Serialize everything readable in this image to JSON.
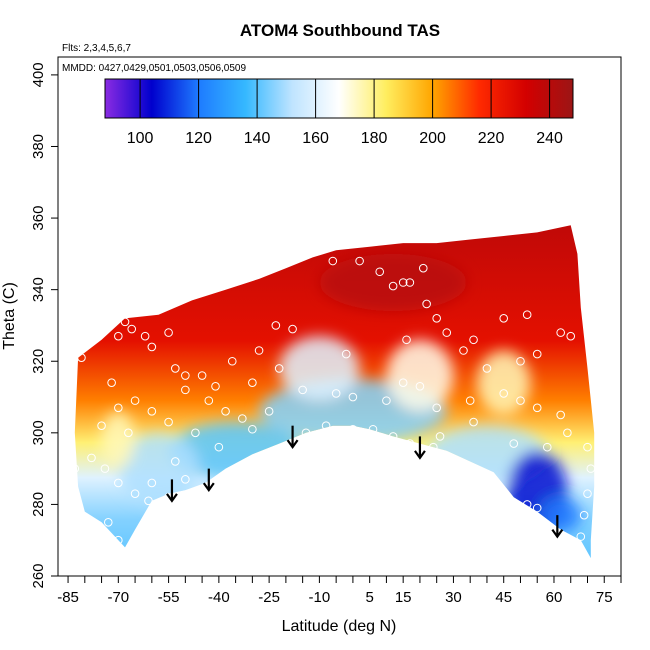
{
  "chart_data": {
    "type": "heatmap",
    "title": "ATOM4 Southbound TAS",
    "annotations": {
      "flights": "Flts: 2,3,4,5,6,7",
      "dates": "MMDD: 0427,0429,0501,0503,0506,0509"
    },
    "xlabel": "Latitude (deg N)",
    "ylabel": "Theta (C)",
    "xlim": [
      -88,
      80
    ],
    "ylim": [
      260,
      405
    ],
    "x_ticks": [
      -85,
      -70,
      -55,
      -40,
      -25,
      -10,
      5,
      15,
      30,
      45,
      60,
      75
    ],
    "x_tick_labels": [
      "-85",
      "-70",
      "-55",
      "-40",
      "-25",
      "-10",
      "5",
      "15",
      "30",
      "45",
      "60",
      "75"
    ],
    "x_minor_ticks": [
      -80,
      -75,
      -65,
      -60,
      -50,
      -45,
      -35,
      -30,
      -20,
      -15,
      -5,
      0,
      10,
      20,
      25,
      35,
      40,
      50,
      55,
      65,
      70,
      80
    ],
    "y_ticks": [
      260,
      280,
      300,
      320,
      340,
      360,
      380,
      400
    ],
    "y_tick_labels": [
      "260",
      "280",
      "300",
      "320",
      "340",
      "360",
      "380",
      "400"
    ],
    "colorbar": {
      "min": 88,
      "max": 248,
      "ticks": [
        100,
        120,
        140,
        160,
        180,
        200,
        220,
        240
      ],
      "tick_labels": [
        "100",
        "120",
        "140",
        "160",
        "180",
        "200",
        "220",
        "240"
      ],
      "colors": [
        "#8a2be2",
        "#0000cd",
        "#1e7bff",
        "#35b8ff",
        "#bfe4ff",
        "#ffffff",
        "#ffee60",
        "#ffa500",
        "#ff2a00",
        "#d30000",
        "#9c1515"
      ]
    },
    "domain_top": [
      [
        -82,
        321
      ],
      [
        -75,
        326
      ],
      [
        -68,
        332
      ],
      [
        -58,
        333
      ],
      [
        -48,
        337
      ],
      [
        -38,
        340
      ],
      [
        -28,
        343
      ],
      [
        -20,
        346
      ],
      [
        -12,
        349
      ],
      [
        -5,
        351
      ],
      [
        5,
        352
      ],
      [
        15,
        353
      ],
      [
        25,
        353
      ],
      [
        35,
        354
      ],
      [
        45,
        355
      ],
      [
        55,
        356
      ],
      [
        65,
        358
      ]
    ],
    "domain_right": [
      [
        65,
        358
      ],
      [
        67,
        350
      ],
      [
        68,
        335
      ],
      [
        70,
        318
      ],
      [
        72,
        300
      ],
      [
        72,
        285
      ],
      [
        71,
        270
      ],
      [
        71,
        265
      ]
    ],
    "domain_bottom": [
      [
        71,
        265
      ],
      [
        68,
        270
      ],
      [
        62,
        273
      ],
      [
        55,
        278
      ],
      [
        48,
        282
      ],
      [
        42,
        289
      ],
      [
        35,
        292
      ],
      [
        28,
        295
      ],
      [
        20,
        297
      ],
      [
        12,
        299
      ],
      [
        5,
        301
      ],
      [
        0,
        302
      ],
      [
        -6,
        302
      ],
      [
        -14,
        300
      ],
      [
        -22,
        297
      ],
      [
        -30,
        294
      ],
      [
        -38,
        290
      ],
      [
        -44,
        286
      ],
      [
        -50,
        284
      ],
      [
        -55,
        283
      ],
      [
        -60,
        281
      ],
      [
        -65,
        273
      ],
      [
        -68,
        268
      ]
    ],
    "domain_left": [
      [
        -68,
        268
      ],
      [
        -72,
        272
      ],
      [
        -75,
        275
      ],
      [
        -80,
        278
      ],
      [
        -82,
        285
      ],
      [
        -83,
        300
      ],
      [
        -82,
        321
      ]
    ],
    "field_blobs": [
      {
        "x": 0,
        "y": 306,
        "rx": 28,
        "ry": 9,
        "value": 145
      },
      {
        "x": -35,
        "y": 295,
        "rx": 20,
        "ry": 8,
        "value": 140
      },
      {
        "x": -58,
        "y": 290,
        "rx": 12,
        "ry": 10,
        "value": 150
      },
      {
        "x": 40,
        "y": 294,
        "rx": 18,
        "ry": 8,
        "value": 150
      },
      {
        "x": 55,
        "y": 283,
        "rx": 9,
        "ry": 12,
        "value": 105
      },
      {
        "x": 62,
        "y": 277,
        "rx": 6,
        "ry": 5,
        "value": 120
      },
      {
        "x": -10,
        "y": 318,
        "rx": 12,
        "ry": 9,
        "value": 160
      },
      {
        "x": 20,
        "y": 316,
        "rx": 10,
        "ry": 10,
        "value": 170
      },
      {
        "x": 45,
        "y": 314,
        "rx": 8,
        "ry": 9,
        "value": 175
      },
      {
        "x": -70,
        "y": 298,
        "rx": 5,
        "ry": 8,
        "value": 175
      },
      {
        "x": 12,
        "y": 342,
        "rx": 22,
        "ry": 8,
        "value": 240
      }
    ],
    "observation_points": [
      [
        -81,
        321
      ],
      [
        -72,
        314
      ],
      [
        -70,
        327
      ],
      [
        -68,
        331
      ],
      [
        -66,
        329
      ],
      [
        -62,
        327
      ],
      [
        -60,
        324
      ],
      [
        -55,
        328
      ],
      [
        -53,
        318
      ],
      [
        -50,
        316
      ],
      [
        -45,
        316
      ],
      [
        -41,
        313
      ],
      [
        -36,
        320
      ],
      [
        -28,
        323
      ],
      [
        -23,
        330
      ],
      [
        -18,
        329
      ],
      [
        -15,
        350
      ],
      [
        -13,
        350
      ],
      [
        -11,
        351
      ],
      [
        -6,
        348
      ],
      [
        2,
        348
      ],
      [
        8,
        345
      ],
      [
        12,
        341
      ],
      [
        15,
        342
      ],
      [
        17,
        342
      ],
      [
        21,
        346
      ],
      [
        22,
        336
      ],
      [
        25,
        332
      ],
      [
        28,
        328
      ],
      [
        33,
        323
      ],
      [
        40,
        318
      ],
      [
        45,
        332
      ],
      [
        52,
        333
      ],
      [
        55,
        322
      ],
      [
        62,
        328
      ],
      [
        65,
        327
      ],
      [
        66,
        361
      ],
      [
        -70,
        307
      ],
      [
        -65,
        309
      ],
      [
        -60,
        306
      ],
      [
        -55,
        303
      ],
      [
        -50,
        312
      ],
      [
        -43,
        309
      ],
      [
        -38,
        306
      ],
      [
        -33,
        304
      ],
      [
        -25,
        306
      ],
      [
        -15,
        312
      ],
      [
        -5,
        311
      ],
      [
        0,
        310
      ],
      [
        10,
        309
      ],
      [
        15,
        314
      ],
      [
        20,
        313
      ],
      [
        25,
        307
      ],
      [
        35,
        309
      ],
      [
        45,
        311
      ],
      [
        50,
        309
      ],
      [
        55,
        307
      ],
      [
        62,
        305
      ],
      [
        -83,
        290
      ],
      [
        -78,
        293
      ],
      [
        -74,
        290
      ],
      [
        -70,
        286
      ],
      [
        -65,
        283
      ],
      [
        -61,
        281
      ],
      [
        -55,
        282
      ],
      [
        -53,
        292
      ],
      [
        -50,
        287
      ],
      [
        -45,
        283
      ],
      [
        -40,
        285
      ],
      [
        -35,
        287
      ],
      [
        -28,
        290
      ],
      [
        -20,
        296
      ],
      [
        -14,
        300
      ],
      [
        -8,
        302
      ],
      [
        0,
        301
      ],
      [
        6,
        301
      ],
      [
        12,
        299
      ],
      [
        17,
        297
      ],
      [
        24,
        296
      ],
      [
        32,
        291
      ],
      [
        40,
        287
      ],
      [
        44,
        281
      ],
      [
        52,
        280
      ],
      [
        55,
        279
      ],
      [
        -73,
        275
      ],
      [
        -70,
        270
      ],
      [
        -66,
        268
      ],
      [
        68,
        271
      ],
      [
        69,
        277
      ],
      [
        70,
        283
      ],
      [
        71,
        290
      ],
      [
        70,
        296
      ],
      [
        -60,
        286
      ],
      [
        -47,
        300
      ],
      [
        -40,
        296
      ],
      [
        -30,
        301
      ],
      [
        -10,
        296
      ],
      [
        5,
        294
      ],
      [
        26,
        299
      ],
      [
        36,
        303
      ],
      [
        48,
        297
      ],
      [
        58,
        296
      ],
      [
        64,
        300
      ],
      [
        -75,
        302
      ],
      [
        -67,
        300
      ],
      [
        -30,
        314
      ],
      [
        -22,
        318
      ],
      [
        -2,
        322
      ],
      [
        16,
        326
      ],
      [
        36,
        326
      ],
      [
        50,
        320
      ]
    ],
    "arrows": [
      {
        "x": -54,
        "y_top": 287,
        "y_bottom": 281
      },
      {
        "x": -43,
        "y_top": 290,
        "y_bottom": 284
      },
      {
        "x": -18,
        "y_top": 302,
        "y_bottom": 296
      },
      {
        "x": 20,
        "y_top": 299,
        "y_bottom": 293
      },
      {
        "x": 61,
        "y_top": 277,
        "y_bottom": 271
      }
    ]
  }
}
